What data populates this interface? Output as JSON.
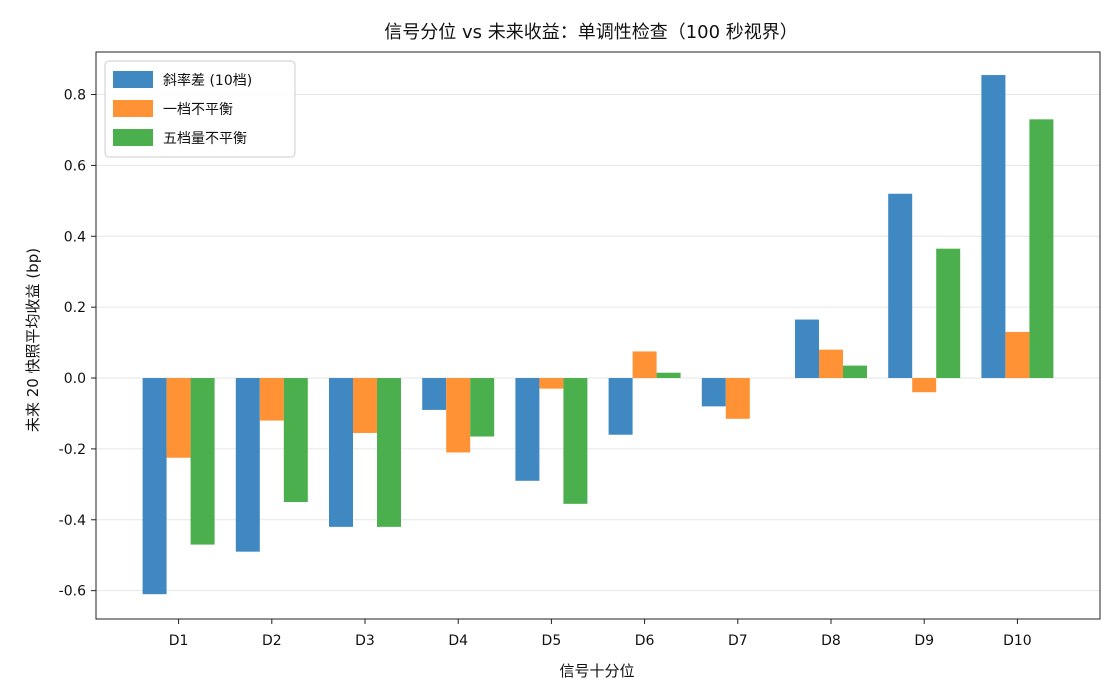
{
  "chart_data": {
    "type": "bar",
    "title": "信号分位 vs 未来收益：单调性检查（100 秒视界）",
    "xlabel": "信号十分位",
    "ylabel": "未来 20 快照平均收益 (bp)",
    "categories": [
      "D1",
      "D2",
      "D3",
      "D4",
      "D5",
      "D6",
      "D7",
      "D8",
      "D9",
      "D10"
    ],
    "ylim": [
      -0.68,
      0.92
    ],
    "yticks": [
      -0.6,
      -0.4,
      -0.2,
      0.0,
      0.2,
      0.4,
      0.6,
      0.8
    ],
    "ytick_labels": [
      "-0.6",
      "-0.4",
      "-0.2",
      "0.0",
      "0.2",
      "0.4",
      "0.6",
      "0.8"
    ],
    "grid": "horizontal",
    "legend_position": "top-left",
    "series": [
      {
        "name": "斜率差 (10档)",
        "color": "#3f88c2",
        "values": [
          -0.61,
          -0.49,
          -0.42,
          -0.09,
          -0.29,
          -0.16,
          -0.08,
          0.165,
          0.52,
          0.855
        ]
      },
      {
        "name": "一档不平衡",
        "color": "#ff9234",
        "values": [
          -0.225,
          -0.12,
          -0.155,
          -0.21,
          -0.03,
          0.075,
          -0.115,
          0.08,
          -0.04,
          0.13
        ]
      },
      {
        "name": "五档量不平衡",
        "color": "#4caf4d",
        "values": [
          -0.47,
          -0.35,
          -0.42,
          -0.165,
          -0.355,
          0.015,
          0.0,
          0.035,
          0.365,
          0.73
        ]
      }
    ]
  }
}
